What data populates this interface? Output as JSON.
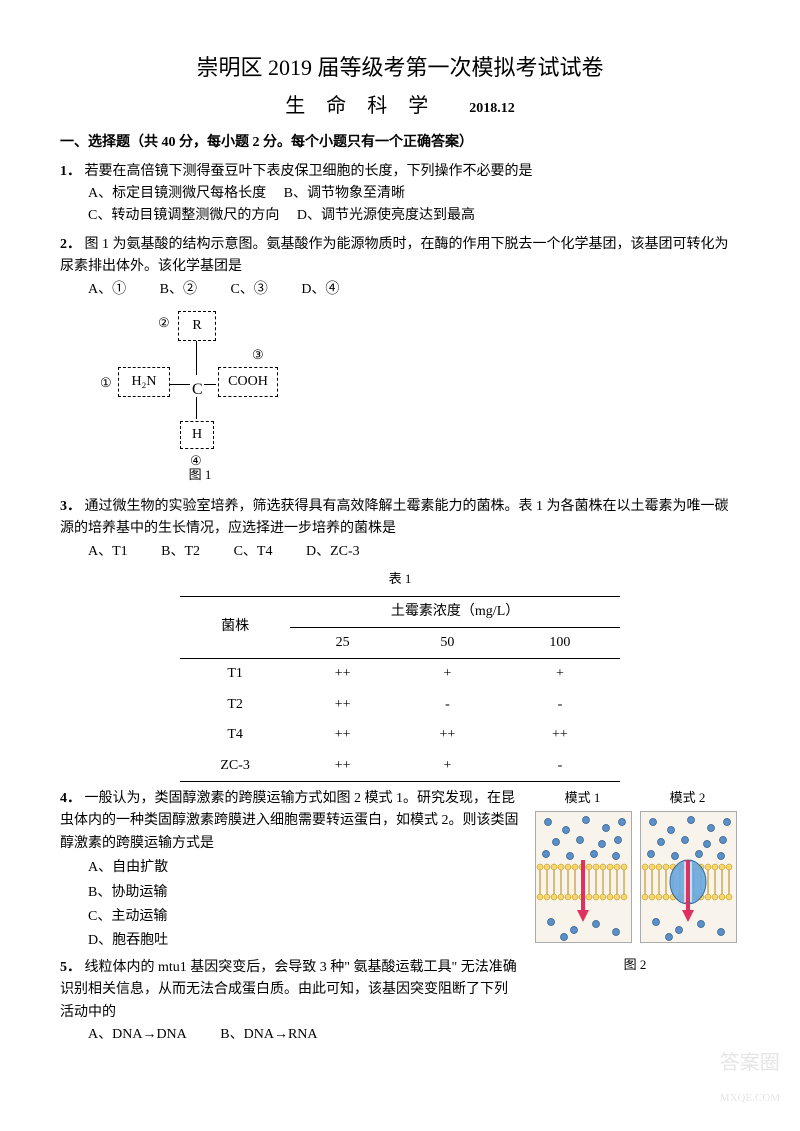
{
  "header": {
    "title": "崇明区 2019 届等级考第一次模拟考试试卷",
    "subject": "生 命 科 学",
    "date": "2018.12"
  },
  "section1": {
    "title": "一、选择题（共 40 分，每小题 2 分。每个小题只有一个正确答案）"
  },
  "q1": {
    "num": "1．",
    "text": "若要在高倍镜下测得蚕豆叶下表皮保卫细胞的长度，下列操作不必要的是",
    "optA": "A、标定目镜测微尺每格长度",
    "optB": "B、调节物象至清晰",
    "optC": "C、转动目镜调整测微尺的方向",
    "optD": "D、调节光源使亮度达到最高"
  },
  "q2": {
    "num": "2．",
    "text": "图 1 为氨基酸的结构示意图。氨基酸作为能源物质时，在酶的作用下脱去一个化学基团，该基团可转化为尿素排出体外。该化学基团是",
    "optA": "A、①",
    "optB": "B、②",
    "optC": "C、③",
    "optD": "D、④"
  },
  "fig1": {
    "caption": "图 1",
    "groups": {
      "top": "R",
      "left": "H₂N",
      "right": "COOH",
      "bottom": "H",
      "center": "C"
    },
    "labels": {
      "l1": "①",
      "l2": "②",
      "l3": "③",
      "l4": "④"
    }
  },
  "q3": {
    "num": "3．",
    "text": "通过微生物的实验室培养，筛选获得具有高效降解土霉素能力的菌株。表 1 为各菌株在以土霉素为唯一碳源的培养基中的生长情况，应选择进一步培养的菌株是",
    "optA": "A、T1",
    "optB": "B、T2",
    "optC": "C、T4",
    "optD": "D、ZC-3"
  },
  "table1": {
    "caption": "表 1",
    "header_row1_col1": "菌株",
    "header_row1_col2": "土霉素浓度（mg/L）",
    "header_row2": [
      "25",
      "50",
      "100"
    ],
    "rows": [
      {
        "strain": "T1",
        "c25": "++",
        "c50": "+",
        "c100": "+"
      },
      {
        "strain": "T2",
        "c25": "++",
        "c50": "-",
        "c100": "-"
      },
      {
        "strain": "T4",
        "c25": "++",
        "c50": "++",
        "c100": "++"
      },
      {
        "strain": "ZC-3",
        "c25": "++",
        "c50": "+",
        "c100": "-"
      }
    ]
  },
  "q4": {
    "num": "4．",
    "text": "一般认为，类固醇激素的跨膜运输方式如图 2 模式 1。研究发现，在昆虫体内的一种类固醇激素跨膜进入细胞需要转运蛋白，如模式 2。则该类固醇激素的跨膜运输方式是",
    "optA": "A、自由扩散",
    "optB": "B、协助运输",
    "optC": "C、主动运输",
    "optD": "D、胞吞胞吐"
  },
  "fig2": {
    "caption": "图 2",
    "mode1_label": "模式 1",
    "mode2_label": "模式 2",
    "colors": {
      "particle": "#5a8fc8",
      "particle_stroke": "#2a5a8a",
      "membrane_head": "#f5d76e",
      "membrane_tail": "#b8860b",
      "arrow": "#e03060",
      "protein": "#6aa8e0",
      "box_bg": "#f8f4ec"
    }
  },
  "q5": {
    "num": "5．",
    "text": "线粒体内的 mtu1 基因突变后，会导致 3 种\" 氨基酸运载工具\" 无法准确识别相关信息，从而无法合成蛋白质。由此可知，该基因突变阻断了下列活动中的",
    "optA": "A、DNA→DNA",
    "optB": "B、DNA→RNA"
  },
  "watermark": "答案圈\nMXQE.COM"
}
